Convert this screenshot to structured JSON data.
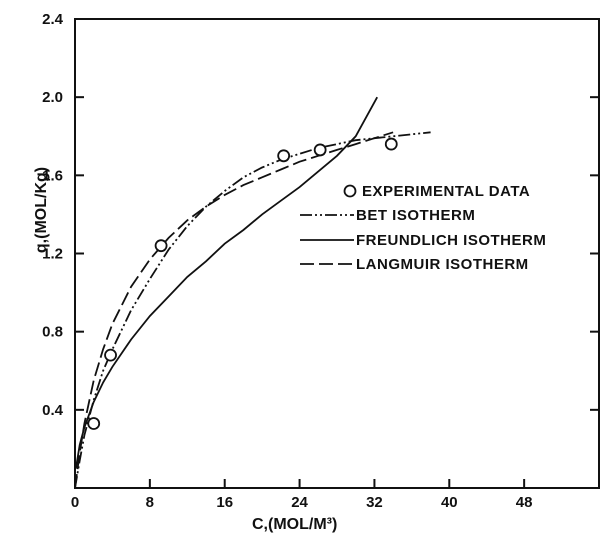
{
  "chart_data": {
    "type": "line",
    "xlabel": "C,(MOL/M³)",
    "ylabel": "q,(MOL/Kg)",
    "xlim": [
      0,
      56
    ],
    "ylim": [
      0,
      2.4
    ],
    "x_ticks": [
      0,
      8,
      16,
      24,
      32,
      40,
      48
    ],
    "x_tick_labels": [
      "0",
      "8",
      "16",
      "24",
      "32",
      "40",
      "48"
    ],
    "y_ticks": [
      0.4,
      0.8,
      1.2,
      1.6,
      2.0,
      2.4
    ],
    "y_tick_labels": [
      "0.4",
      "0.8",
      "1.2",
      "1.6",
      "2.0",
      "2.4"
    ],
    "grid": false,
    "legend_position": "center-right",
    "series": [
      {
        "name": "EXPERIMENTAL DATA",
        "style": "marker",
        "x": [
          2.0,
          3.8,
          9.2,
          22.3,
          26.2,
          33.8
        ],
        "y": [
          0.33,
          0.68,
          1.24,
          1.7,
          1.73,
          1.76
        ]
      },
      {
        "name": "BET ISOTHERM",
        "style": "dash-dot-dot",
        "x": [
          0,
          0.5,
          1,
          2,
          3,
          4,
          6,
          8,
          10,
          12,
          14,
          16,
          18,
          20,
          22,
          24,
          26,
          28,
          30,
          32,
          34,
          36,
          38
        ],
        "y": [
          0,
          0.14,
          0.27,
          0.45,
          0.6,
          0.71,
          0.91,
          1.07,
          1.22,
          1.34,
          1.44,
          1.52,
          1.59,
          1.64,
          1.68,
          1.71,
          1.74,
          1.76,
          1.78,
          1.79,
          1.8,
          1.81,
          1.82
        ]
      },
      {
        "name": "FREUNDLICH ISOTHERM",
        "style": "solid",
        "x": [
          0.1,
          0.5,
          1,
          2,
          3,
          4,
          6,
          8,
          10,
          12,
          14,
          16,
          18,
          20,
          22,
          24,
          26,
          28,
          30,
          32.3
        ],
        "y": [
          0.1,
          0.22,
          0.31,
          0.44,
          0.54,
          0.62,
          0.76,
          0.88,
          0.98,
          1.08,
          1.16,
          1.25,
          1.32,
          1.4,
          1.47,
          1.54,
          1.62,
          1.7,
          1.8,
          2.0
        ]
      },
      {
        "name": "LANGMUIR ISOTHERM",
        "style": "dashed",
        "x": [
          0,
          0.5,
          1,
          2,
          3,
          4,
          6,
          8,
          10,
          12,
          14,
          16,
          18,
          20,
          22,
          24,
          26,
          28,
          30,
          32,
          34
        ],
        "y": [
          0,
          0.18,
          0.33,
          0.55,
          0.71,
          0.84,
          1.03,
          1.17,
          1.28,
          1.37,
          1.44,
          1.5,
          1.55,
          1.59,
          1.63,
          1.67,
          1.7,
          1.73,
          1.76,
          1.79,
          1.82
        ]
      }
    ]
  }
}
